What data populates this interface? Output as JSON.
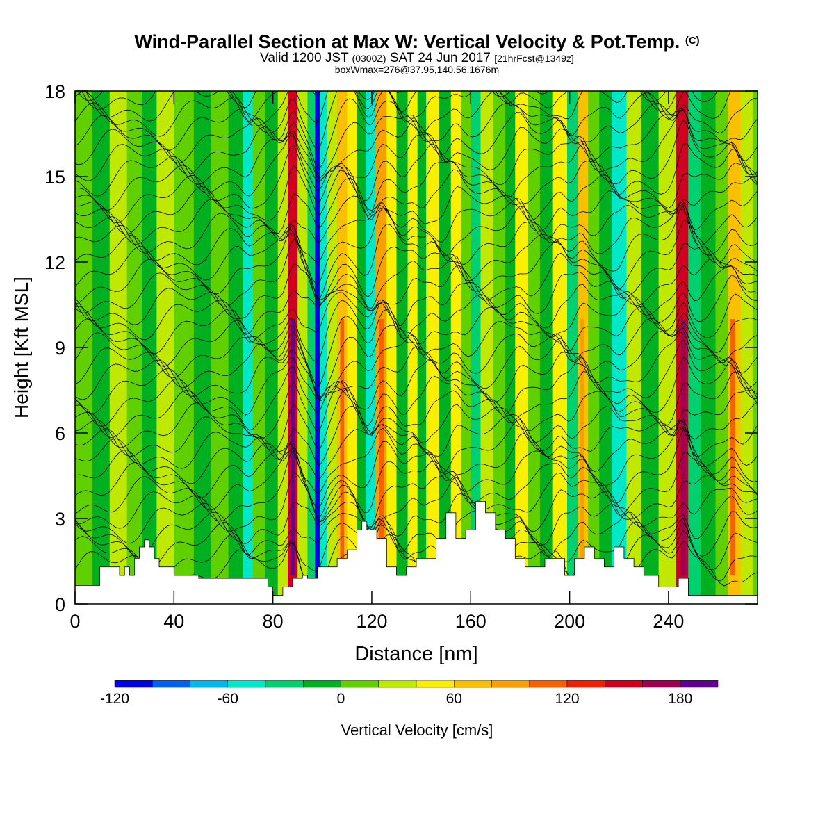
{
  "title": {
    "main": "Wind-Parallel Section at Max W: Vertical Velocity & Pot.Temp.",
    "copyright": "(C)",
    "valid_prefix": "Valid 1200 JST",
    "utc": "(0300Z)",
    "valid_date": "SAT 24 Jun 2017",
    "forecast": "[21hrFcst@1349z]",
    "box": "boxWmax=276@37.95,140.56,1676m"
  },
  "chart_data": {
    "type": "heatmap",
    "xlabel": "Distance [nm]",
    "ylabel": "Height [Kft MSL]",
    "xlim": [
      0,
      276
    ],
    "ylim": [
      0,
      18
    ],
    "x_ticks": [
      "0",
      "40",
      "80",
      "120",
      "160",
      "200",
      "240"
    ],
    "y_ticks": [
      "0",
      "3",
      "6",
      "9",
      "12",
      "15",
      "18"
    ],
    "colorbar": {
      "label": "Vertical Velocity [cm/s]",
      "min": -120,
      "max": 200,
      "step": 20,
      "tick_labels": [
        "-120",
        "-60",
        "0",
        "60",
        "120",
        "180"
      ],
      "colors": [
        "#0000e8",
        "#0060f0",
        "#00b8f0",
        "#00e8c8",
        "#00d070",
        "#00b020",
        "#60d000",
        "#c0e800",
        "#f8f000",
        "#f8c000",
        "#f8a000",
        "#f86000",
        "#f02000",
        "#d00020",
        "#a00050",
        "#600090"
      ]
    },
    "background_w": 5,
    "columns": [
      {
        "x": 4,
        "w": 15
      },
      {
        "x": 10,
        "w": -5
      },
      {
        "x": 18,
        "w": 25
      },
      {
        "x": 24,
        "w": 10
      },
      {
        "x": 30,
        "w": -15
      },
      {
        "x": 36,
        "w": 25
      },
      {
        "x": 44,
        "w": 15
      },
      {
        "x": 52,
        "w": -5
      },
      {
        "x": 58,
        "w": 15
      },
      {
        "x": 66,
        "w": -10
      },
      {
        "x": 70,
        "w": -45
      },
      {
        "x": 74,
        "w": 15
      },
      {
        "x": 80,
        "w": -20
      },
      {
        "x": 84,
        "w": 35
      },
      {
        "x": 88,
        "w": 150
      },
      {
        "x": 92,
        "w": 30
      },
      {
        "x": 96,
        "w": -30
      },
      {
        "x": 98,
        "w": -115
      },
      {
        "x": 100,
        "w": -45
      },
      {
        "x": 104,
        "w": 25
      },
      {
        "x": 108,
        "w": 70
      },
      {
        "x": 112,
        "w": 50
      },
      {
        "x": 116,
        "w": -15
      },
      {
        "x": 119,
        "w": -55
      },
      {
        "x": 124,
        "w": 85
      },
      {
        "x": 128,
        "w": 55
      },
      {
        "x": 132,
        "w": -5
      },
      {
        "x": 137,
        "w": 55
      },
      {
        "x": 140,
        "w": -15
      },
      {
        "x": 144,
        "w": 45
      },
      {
        "x": 150,
        "w": -10
      },
      {
        "x": 154,
        "w": 55
      },
      {
        "x": 158,
        "w": 15
      },
      {
        "x": 162,
        "w": -35
      },
      {
        "x": 166,
        "w": 35
      },
      {
        "x": 172,
        "w": 15
      },
      {
        "x": 176,
        "w": -10
      },
      {
        "x": 180,
        "w": 45
      },
      {
        "x": 186,
        "w": 15
      },
      {
        "x": 190,
        "w": -5
      },
      {
        "x": 196,
        "w": 55
      },
      {
        "x": 202,
        "w": -25
      },
      {
        "x": 205,
        "w": 60
      },
      {
        "x": 210,
        "w": 15
      },
      {
        "x": 214,
        "w": -15
      },
      {
        "x": 220,
        "w": -45
      },
      {
        "x": 226,
        "w": 20
      },
      {
        "x": 232,
        "w": -10
      },
      {
        "x": 240,
        "w": 20
      },
      {
        "x": 246,
        "w": 140
      },
      {
        "x": 250,
        "w": -25
      },
      {
        "x": 256,
        "w": -10
      },
      {
        "x": 262,
        "w": 15
      },
      {
        "x": 266,
        "w": 70
      },
      {
        "x": 272,
        "w": 35
      }
    ],
    "terrain": [
      [
        0,
        0.65
      ],
      [
        8,
        0.65
      ],
      [
        10,
        1.3
      ],
      [
        16,
        1.3
      ],
      [
        18,
        1.0
      ],
      [
        20,
        1.3
      ],
      [
        22,
        1.0
      ],
      [
        24,
        1.6
      ],
      [
        26,
        2.0
      ],
      [
        28,
        2.25
      ],
      [
        30,
        2.0
      ],
      [
        32,
        1.6
      ],
      [
        34,
        1.3
      ],
      [
        37,
        1.3
      ],
      [
        40,
        1.0
      ],
      [
        46,
        1.0
      ],
      [
        50,
        0.9
      ],
      [
        60,
        0.9
      ],
      [
        68,
        0.9
      ],
      [
        70,
        0.9
      ],
      [
        76,
        0.9
      ],
      [
        78,
        0.6
      ],
      [
        80,
        0.3
      ],
      [
        84,
        0.6
      ],
      [
        88,
        0.9
      ],
      [
        92,
        1.0
      ],
      [
        94,
        0.9
      ],
      [
        98,
        1.3
      ],
      [
        102,
        1.3
      ],
      [
        106,
        1.6
      ],
      [
        110,
        1.9
      ],
      [
        114,
        2.6
      ],
      [
        116,
        2.9
      ],
      [
        118,
        2.6
      ],
      [
        122,
        2.3
      ],
      [
        126,
        1.3
      ],
      [
        130,
        1.0
      ],
      [
        134,
        1.3
      ],
      [
        138,
        1.6
      ],
      [
        142,
        1.6
      ],
      [
        146,
        2.3
      ],
      [
        150,
        3.2
      ],
      [
        154,
        2.3
      ],
      [
        158,
        2.6
      ],
      [
        162,
        3.6
      ],
      [
        166,
        3.2
      ],
      [
        170,
        2.6
      ],
      [
        174,
        2.3
      ],
      [
        178,
        1.6
      ],
      [
        182,
        1.3
      ],
      [
        186,
        1.3
      ],
      [
        190,
        1.6
      ],
      [
        194,
        1.6
      ],
      [
        198,
        1.0
      ],
      [
        202,
        1.6
      ],
      [
        206,
        2.0
      ],
      [
        210,
        1.6
      ],
      [
        214,
        1.3
      ],
      [
        218,
        2.0
      ],
      [
        222,
        1.6
      ],
      [
        226,
        1.3
      ],
      [
        230,
        1.0
      ],
      [
        236,
        0.6
      ],
      [
        240,
        0.6
      ],
      [
        244,
        0.9
      ],
      [
        248,
        0.3
      ],
      [
        256,
        0.3
      ],
      [
        266,
        0.3
      ],
      [
        270,
        0.3
      ],
      [
        276,
        0.3
      ]
    ],
    "theta_isolines": {
      "count": 42,
      "spacing_kft": 0.42
    },
    "contour_labels": [
      "",
      "",
      "",
      "",
      "",
      "",
      "",
      "",
      "",
      "",
      "",
      "",
      "",
      "",
      "",
      "",
      "",
      "",
      "",
      "",
      "",
      "",
      "",
      "",
      "",
      "",
      "",
      "",
      "",
      "",
      "",
      "",
      "",
      "",
      "",
      "",
      "",
      "",
      "",
      "",
      "",
      "",
      "",
      ""
    ]
  }
}
